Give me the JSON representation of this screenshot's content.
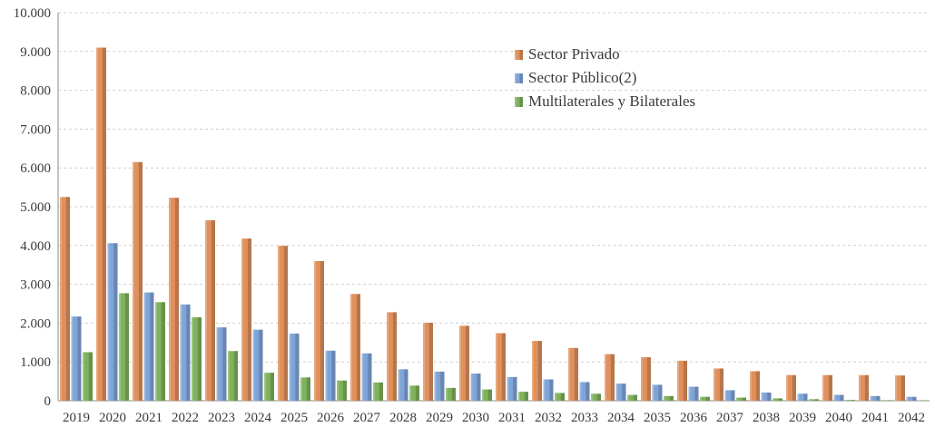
{
  "chart_data": {
    "type": "bar",
    "title": "",
    "xlabel": "",
    "ylabel": "",
    "ylim": [
      0,
      10000
    ],
    "y_ticks": [
      0,
      1000,
      2000,
      3000,
      4000,
      5000,
      6000,
      7000,
      8000,
      9000,
      10000
    ],
    "y_tick_labels": [
      "0",
      "1.000",
      "2.000",
      "3.000",
      "4.000",
      "5.000",
      "6.000",
      "7.000",
      "8.000",
      "9.000",
      "10.000"
    ],
    "grid": "horizontal-dashed",
    "legend_position": "top-center",
    "categories": [
      "2019",
      "2020",
      "2021",
      "2022",
      "2023",
      "2024",
      "2025",
      "2026",
      "2027",
      "2028",
      "2029",
      "2030",
      "2031",
      "2032",
      "2033",
      "2034",
      "2035",
      "2036",
      "2037",
      "2038",
      "2039",
      "2040",
      "2041",
      "2042"
    ],
    "series": [
      {
        "name": "Sector Privado",
        "color": "#e0905c",
        "values": [
          5250,
          9100,
          6150,
          5230,
          4650,
          4180,
          3990,
          3600,
          2750,
          2280,
          2010,
          1930,
          1740,
          1540,
          1360,
          1200,
          1120,
          1030,
          830,
          760,
          660,
          660,
          660,
          650
        ]
      },
      {
        "name": "Sector Público(2)",
        "color": "#7fa4d8",
        "values": [
          2170,
          4060,
          2790,
          2480,
          1890,
          1830,
          1730,
          1290,
          1220,
          810,
          750,
          700,
          610,
          550,
          480,
          440,
          410,
          360,
          270,
          210,
          180,
          150,
          120,
          100
        ]
      },
      {
        "name": "Multilaterales y Bilaterales",
        "color": "#7fb25c",
        "values": [
          1250,
          2770,
          2540,
          2150,
          1280,
          720,
          600,
          520,
          470,
          390,
          330,
          290,
          230,
          200,
          180,
          150,
          120,
          100,
          80,
          60,
          40,
          20,
          15,
          10
        ]
      }
    ]
  }
}
